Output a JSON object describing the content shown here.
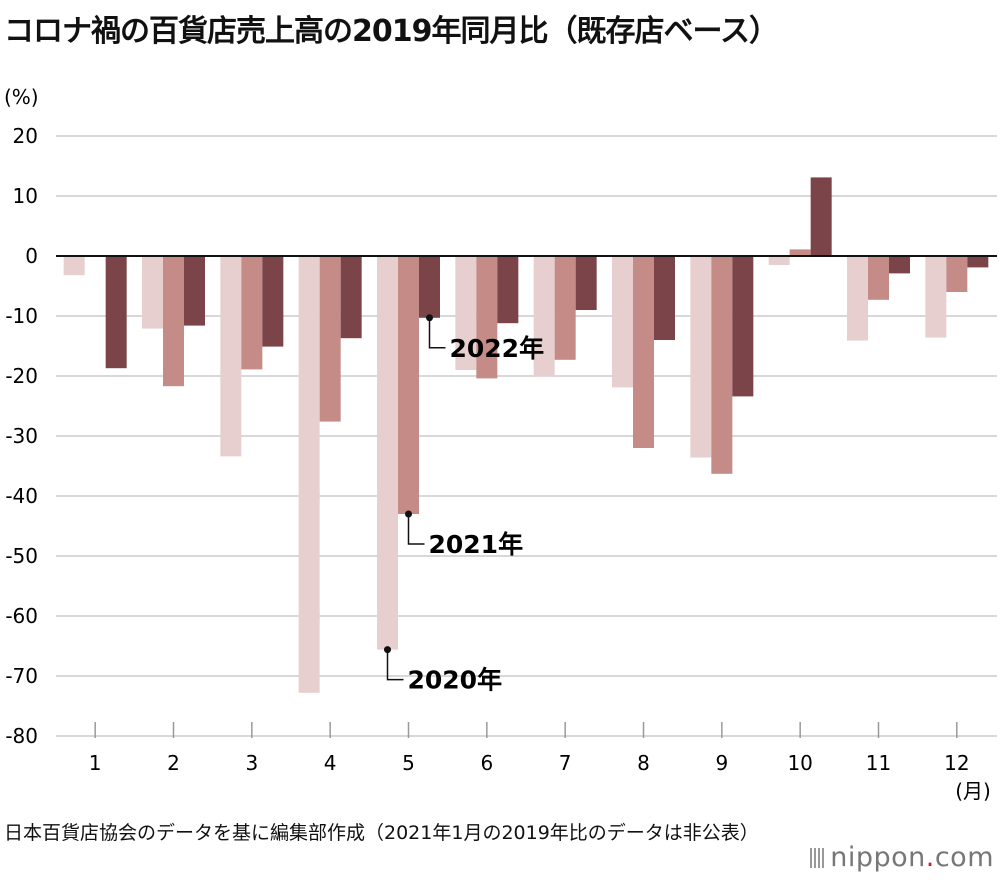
{
  "title": "コロナ禍の百貨店売上高の2019年同月比（既存店ベース）",
  "footnote": "日本百貨店協会のデータを基に編集部作成（2021年1月の2019年比のデータは非公表）",
  "logo": {
    "brand": "nippon",
    "dot": ".",
    "tld": "com",
    "icon": "barcode-icon"
  },
  "colors": {
    "2020": "#e8cfcf",
    "2021": "#c48b87",
    "2022": "#7b4448",
    "grid": "#cccccc",
    "axis": "#111111"
  },
  "chart_data": {
    "type": "bar",
    "ylabel": "(%)",
    "xunit": "(月)",
    "ylim": [
      -80,
      20
    ],
    "yticks": [
      "20",
      "10",
      "0",
      "-10",
      "-20",
      "-30",
      "-40",
      "-50",
      "-60",
      "-70",
      "-80"
    ],
    "categories": [
      "1",
      "2",
      "3",
      "4",
      "5",
      "6",
      "7",
      "8",
      "9",
      "10",
      "11",
      "12"
    ],
    "series": [
      {
        "name": "2020年",
        "values": [
          -3.2,
          -12.1,
          -33.4,
          -72.8,
          -65.6,
          -19.0,
          -20.1,
          -21.9,
          -33.6,
          -1.5,
          -14.1,
          -13.6
        ]
      },
      {
        "name": "2021年",
        "values": [
          null,
          -21.7,
          -18.9,
          -27.6,
          -43.0,
          -20.4,
          -17.3,
          -32.0,
          -36.3,
          1.1,
          -7.3,
          -6.0
        ]
      },
      {
        "name": "2022年",
        "values": [
          -18.7,
          -11.6,
          -15.1,
          -13.7,
          -10.3,
          -11.2,
          -9.0,
          -14.0,
          -23.4,
          13.1,
          -2.9,
          -1.9
        ]
      }
    ],
    "annotations": [
      {
        "text": "2022年",
        "series": 2,
        "month": 5
      },
      {
        "text": "2021年",
        "series": 1,
        "month": 5
      },
      {
        "text": "2020年",
        "series": 0,
        "month": 5
      }
    ],
    "grid": true,
    "legend": "inline-annotations"
  }
}
